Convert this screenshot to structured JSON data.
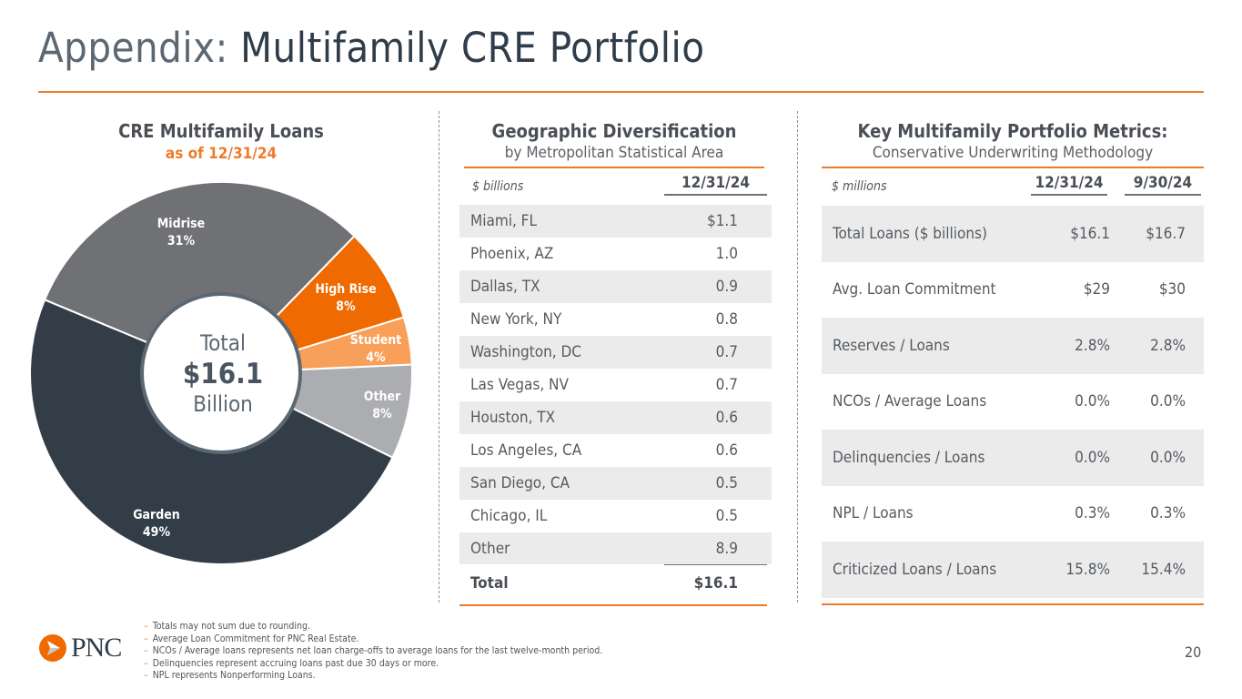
{
  "title": {
    "prefix": "Appendix:",
    "main": "Multifamily CRE Portfolio"
  },
  "chart_data": {
    "type": "pie",
    "title": "CRE Multifamily Loans",
    "subtitle": "as of 12/31/24",
    "center": {
      "line1": "Total",
      "line2": "$16.1",
      "line3": "Billion"
    },
    "slices": [
      {
        "label": "Other",
        "value": 8,
        "display": "8%",
        "color": "#acadb0"
      },
      {
        "label": "Garden",
        "value": 49,
        "display": "49%",
        "color": "#323d47"
      },
      {
        "label": "Midrise",
        "value": 31,
        "display": "31%",
        "color": "#707175"
      },
      {
        "label": "High Rise",
        "value": 8,
        "display": "8%",
        "color": "#ef6a00"
      },
      {
        "label": "Student",
        "value": 4,
        "display": "4%",
        "color": "#f8a05a"
      }
    ]
  },
  "geo": {
    "title": "Geographic Diversification",
    "subtitle": "by Metropolitan Statistical Area",
    "unit": "$ billions",
    "col": "12/31/24",
    "rows": [
      {
        "label": "Miami, FL",
        "value": "$1.1"
      },
      {
        "label": "Phoenix, AZ",
        "value": "1.0"
      },
      {
        "label": "Dallas, TX",
        "value": "0.9"
      },
      {
        "label": "New York, NY",
        "value": "0.8"
      },
      {
        "label": "Washington, DC",
        "value": "0.7"
      },
      {
        "label": "Las Vegas, NV",
        "value": "0.7"
      },
      {
        "label": "Houston, TX",
        "value": "0.6"
      },
      {
        "label": "Los Angeles, CA",
        "value": "0.6"
      },
      {
        "label": "San Diego, CA",
        "value": "0.5"
      },
      {
        "label": "Chicago, IL",
        "value": "0.5"
      },
      {
        "label": "Other",
        "value": "8.9"
      }
    ],
    "total": {
      "label": "Total",
      "value": "$16.1"
    }
  },
  "metrics": {
    "title": "Key Multifamily Portfolio Metrics:",
    "subtitle": "Conservative Underwriting Methodology",
    "unit": "$ millions",
    "cols": [
      "12/31/24",
      "9/30/24"
    ],
    "rows": [
      {
        "label": "Total Loans ($ billions)",
        "v1": "$16.1",
        "v2": "$16.7"
      },
      {
        "label": "Avg. Loan Commitment",
        "v1": "$29",
        "v2": "$30"
      },
      {
        "label": "Reserves / Loans",
        "v1": "2.8%",
        "v2": "2.8%"
      },
      {
        "label": "NCOs / Average Loans",
        "v1": "0.0%",
        "v2": "0.0%"
      },
      {
        "label": "Delinquencies / Loans",
        "v1": "0.0%",
        "v2": "0.0%"
      },
      {
        "label": "NPL / Loans",
        "v1": "0.3%",
        "v2": "0.3%"
      },
      {
        "label": "Criticized Loans / Loans",
        "v1": "15.8%",
        "v2": "15.4%"
      }
    ]
  },
  "footnotes": [
    "Totals may not sum due to rounding.",
    "Average Loan Commitment for PNC Real Estate.",
    "NCOs / Average loans represents net loan charge-offs to average loans for the last twelve-month period.",
    "Delinquencies represent accruing loans past due 30 days or more.",
    "NPL represents Nonperforming Loans."
  ],
  "logo": "PNC",
  "page_number": "20",
  "colors": {
    "accent": "#ee7a2a",
    "dark": "#2f3d4a"
  }
}
